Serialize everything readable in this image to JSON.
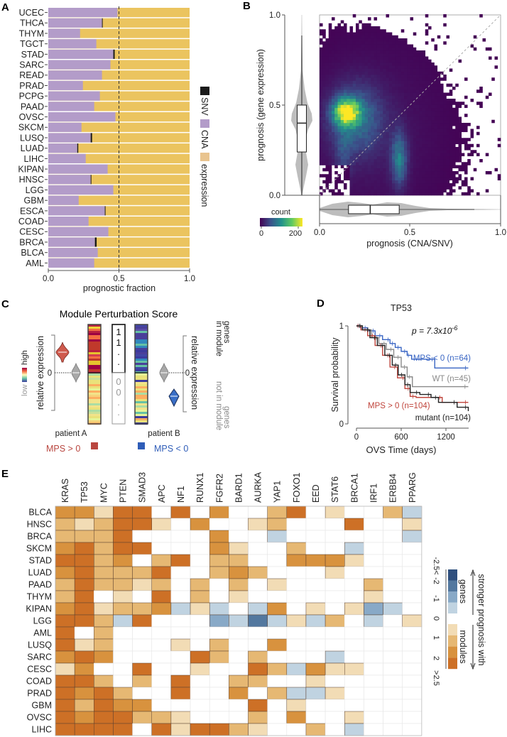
{
  "panels": {
    "A": "A",
    "B": "B",
    "C": "C",
    "D": "D",
    "E": "E"
  },
  "chart_data": [
    {
      "panel": "A",
      "type": "bar",
      "orientation": "horizontal-stacked",
      "categories": [
        "UCEC",
        "THCA",
        "THYM",
        "TGCT",
        "STAD",
        "SARC",
        "READ",
        "PRAD",
        "PCPG",
        "PAAD",
        "OVSC",
        "SKCM",
        "LUSQ",
        "LUAD",
        "LIHC",
        "KIPAN",
        "HNSC",
        "LGG",
        "GBM",
        "ESCA",
        "COAD",
        "CESC",
        "BRCA",
        "BLCA",
        "AML"
      ],
      "series": [
        {
          "name": "CNA",
          "color": "#b39cc9",
          "values": [
            0.49,
            0.38,
            0.225,
            0.34,
            0.46,
            0.44,
            0.38,
            0.245,
            0.365,
            0.325,
            0.475,
            0.235,
            0.3,
            0.205,
            0.265,
            0.42,
            0.3,
            0.46,
            0.215,
            0.4,
            0.285,
            0.425,
            0.33,
            0.35,
            0.325
          ]
        },
        {
          "name": "SNV",
          "color": "#1a1a1a",
          "values": [
            0,
            0.003,
            0,
            0,
            0.01,
            0,
            0,
            0,
            0,
            0,
            0,
            0,
            0.01,
            0.007,
            0,
            0,
            0.003,
            0,
            0,
            0.003,
            0,
            0,
            0.012,
            0,
            0
          ]
        },
        {
          "name": "expression",
          "color": "#ebc45f",
          "values": "remainder to 1.0"
        }
      ],
      "legend_colors": {
        "SNV": "#1a1a1a",
        "CNA": "#b39cc9",
        "expression": "#e9c48f"
      },
      "xlabel": "prognostic fraction",
      "xlim": [
        0,
        1
      ],
      "xticks": [
        "0.0",
        "0.5",
        "1.0"
      ],
      "reference_line": 0.5,
      "legend": [
        "SNV",
        "CNA",
        "expression"
      ],
      "legend_position": "right"
    },
    {
      "panel": "B",
      "type": "heatmap",
      "subtype": "2d-histogram with marginal violins",
      "xlabel": "prognosis (CNA/SNV)",
      "ylabel": "prognosis (gene expression)",
      "xlim": [
        0,
        1
      ],
      "ylim": [
        0,
        1
      ],
      "xticks": [
        "0.0",
        "0.5",
        "1.0"
      ],
      "yticks": [
        "0.0",
        "0.5",
        "1.0"
      ],
      "diagonal_reference": true,
      "density_peaks": [
        {
          "x": 0.16,
          "y": 0.45
        },
        {
          "x": 0.45,
          "y": 0.2
        }
      ],
      "colorbar": {
        "label": "count",
        "min": 0,
        "max": 200,
        "ticks": [
          "0",
          "200"
        ],
        "colormap": "viridis"
      },
      "y_marginal_box": {
        "q1": 0.24,
        "median": 0.4,
        "q3": 0.5
      },
      "x_marginal_box": {
        "q1": 0.16,
        "median": 0.28,
        "q3": 0.44
      }
    },
    {
      "panel": "D",
      "type": "line",
      "subtype": "kaplan-meier",
      "title": "TP53",
      "xlabel": "OVS Time (days)",
      "ylabel": "Survival probability",
      "xlim": [
        0,
        1500
      ],
      "ylim": [
        0,
        1
      ],
      "xticks": [
        "0",
        "600",
        "1200"
      ],
      "yticks": [
        "0",
        "1"
      ],
      "annotation": {
        "p_prefix": "p = 7.3x10",
        "p_exp": "-6"
      },
      "series": [
        {
          "name": "MPS < 0 (n=64)",
          "color": "#3a66c4",
          "points": [
            [
              0,
              1
            ],
            [
              60,
              0.98
            ],
            [
              150,
              0.95
            ],
            [
              250,
              0.9
            ],
            [
              350,
              0.86
            ],
            [
              450,
              0.82
            ],
            [
              520,
              0.78
            ],
            [
              600,
              0.74
            ],
            [
              680,
              0.7
            ],
            [
              740,
              0.66
            ],
            [
              1050,
              0.57
            ],
            [
              1500,
              0.57
            ]
          ]
        },
        {
          "name": "WT (n=45)",
          "color": "#8a8a8a",
          "points": [
            [
              0,
              1
            ],
            [
              80,
              0.96
            ],
            [
              200,
              0.88
            ],
            [
              300,
              0.82
            ],
            [
              400,
              0.76
            ],
            [
              500,
              0.68
            ],
            [
              600,
              0.58
            ],
            [
              680,
              0.48
            ],
            [
              750,
              0.38
            ],
            [
              1500,
              0.38
            ]
          ]
        },
        {
          "name": "MPS > 0 (n=104)",
          "color": "#c0453c",
          "points": [
            [
              0,
              1
            ],
            [
              60,
              0.96
            ],
            [
              150,
              0.9
            ],
            [
              250,
              0.8
            ],
            [
              350,
              0.7
            ],
            [
              450,
              0.58
            ],
            [
              550,
              0.47
            ],
            [
              650,
              0.36
            ],
            [
              720,
              0.28
            ],
            [
              800,
              0.27
            ],
            [
              1150,
              0.22
            ],
            [
              1500,
              0.22
            ]
          ]
        },
        {
          "name": "mutant (n=104)",
          "color": "#222222",
          "points": [
            [
              0,
              1
            ],
            [
              80,
              0.96
            ],
            [
              180,
              0.88
            ],
            [
              280,
              0.8
            ],
            [
              380,
              0.7
            ],
            [
              480,
              0.6
            ],
            [
              560,
              0.5
            ],
            [
              650,
              0.4
            ],
            [
              720,
              0.32
            ],
            [
              850,
              0.3
            ],
            [
              1000,
              0.27
            ],
            [
              1100,
              0.22
            ],
            [
              1350,
              0.17
            ],
            [
              1500,
              0.13
            ]
          ]
        }
      ]
    },
    {
      "panel": "E",
      "type": "heatmap",
      "columns": [
        "KRAS",
        "TP53",
        "MYC",
        "PTEN",
        "SMAD3",
        "APC",
        "NF1",
        "RUNX1",
        "FGFR2",
        "BARD1",
        "AURKA",
        "YAP1",
        "FOXO1",
        "EED",
        "STAT6",
        "BRCA1",
        "IRF1",
        "ERBB4",
        "PPARG"
      ],
      "rows": [
        "BLCA",
        "HNSC",
        "BRCA",
        "SKCM",
        "STAD",
        "LUAD",
        "PAAD",
        "THYM",
        "KIPAN",
        "LGG",
        "AML",
        "LUSQ",
        "SARC",
        "CESC",
        "COAD",
        "PRAD",
        "GBM",
        "OVSC",
        "LIHC"
      ],
      "value_note": "binned level: positive = stronger prognosis with modules (1..4 ≈ 0-1,1-2,2-2.5,>2.5), negative = stronger prognosis with genes",
      "values": [
        [
          3,
          3,
          1,
          4,
          4,
          0,
          4,
          0,
          3,
          0,
          0,
          2,
          4,
          0,
          1,
          0,
          0,
          2,
          -1
        ],
        [
          2,
          1,
          2,
          4,
          4,
          1,
          0,
          3,
          0,
          0,
          1,
          2,
          0,
          0,
          0,
          4,
          0,
          0,
          1
        ],
        [
          2,
          2,
          2,
          4,
          0,
          0,
          0,
          0,
          3,
          0,
          0,
          -1,
          0,
          0,
          0,
          0,
          0,
          0,
          -1
        ],
        [
          3,
          4,
          2,
          4,
          4,
          0,
          0,
          0,
          3,
          1,
          0,
          0,
          2,
          0,
          0,
          -1,
          0,
          0,
          0
        ],
        [
          4,
          4,
          2,
          3,
          0,
          2,
          4,
          0,
          2,
          2,
          0,
          0,
          3,
          3,
          3,
          1,
          0,
          0,
          0
        ],
        [
          3,
          4,
          2,
          2,
          2,
          4,
          0,
          0,
          2,
          3,
          2,
          0,
          0,
          0,
          1,
          0,
          0,
          0,
          0
        ],
        [
          2,
          4,
          2,
          2,
          1,
          2,
          0,
          2,
          0,
          2,
          0,
          1,
          0,
          0,
          0,
          0,
          2,
          0,
          0
        ],
        [
          2,
          4,
          0,
          1,
          0,
          4,
          0,
          2,
          0,
          1,
          0,
          0,
          0,
          0,
          0,
          0,
          1,
          0,
          0
        ],
        [
          3,
          4,
          1,
          2,
          2,
          3,
          -1,
          1,
          -1,
          0,
          -1,
          3,
          0,
          1,
          0,
          1,
          -2,
          -1,
          0
        ],
        [
          4,
          4,
          2,
          -1,
          4,
          0,
          0,
          0,
          -2,
          -1,
          -3,
          -1,
          1,
          -1,
          2,
          0,
          -1,
          0,
          1
        ],
        [
          4,
          0,
          2,
          0,
          0,
          0,
          0,
          0,
          0,
          0,
          0,
          0,
          0,
          0,
          0,
          0,
          0,
          0,
          0
        ],
        [
          4,
          1,
          2,
          0,
          0,
          0,
          1,
          0,
          2,
          0,
          0,
          3,
          0,
          0,
          0,
          0,
          0,
          0,
          0
        ],
        [
          3,
          4,
          3,
          0,
          0,
          0,
          0,
          4,
          2,
          0,
          2,
          0,
          0,
          0,
          -1,
          0,
          0,
          0,
          0
        ],
        [
          1,
          3,
          0,
          0,
          4,
          0,
          0,
          1,
          0,
          0,
          4,
          2,
          -1,
          3,
          1,
          1,
          0,
          0,
          0
        ],
        [
          4,
          4,
          2,
          0,
          2,
          0,
          4,
          0,
          0,
          2,
          2,
          0,
          0,
          1,
          0,
          0,
          0,
          0,
          0
        ],
        [
          4,
          3,
          4,
          2,
          0,
          0,
          4,
          0,
          0,
          3,
          0,
          2,
          -1,
          -1,
          1,
          0,
          0,
          0,
          0
        ],
        [
          4,
          2,
          4,
          3,
          3,
          0,
          0,
          0,
          0,
          0,
          4,
          0,
          1,
          0,
          0,
          0,
          0,
          0,
          0
        ],
        [
          4,
          3,
          4,
          4,
          2,
          2,
          1,
          0,
          0,
          0,
          2,
          0,
          3,
          0,
          0,
          1,
          0,
          0,
          0
        ],
        [
          4,
          4,
          4,
          4,
          0,
          4,
          1,
          4,
          4,
          2,
          1,
          0,
          0,
          2,
          0,
          -1,
          0,
          0,
          0
        ]
      ],
      "colors": {
        "4": "#cd7026",
        "3": "#d8923e",
        "2": "#e6b873",
        "1": "#f2dcb5",
        "0": "#ffffff",
        "-1": "#c0d3e1",
        "-2": "#88a9c7",
        "-3": "#53789f",
        "-4": "#2f4f7e"
      },
      "legend": {
        "ticks": [
          "-2.5<",
          "-2",
          "-1",
          "0",
          "1",
          "2",
          ">2.5"
        ],
        "genes_label": "genes",
        "modules_label": "modules",
        "title": "stronger prognosis with"
      }
    }
  ],
  "schematic": {
    "title": "Module Perturbation Score",
    "axis_label": "relative expression",
    "zero": "0",
    "scale_high": "high",
    "scale_low": "low",
    "in_module_digits": [
      "1",
      "1",
      ".",
      "."
    ],
    "out_module_digits": [
      "0",
      "0",
      ".",
      "."
    ],
    "genes_in_module": [
      "genes",
      "in module"
    ],
    "genes_not_in_module": [
      "genes",
      "not in module"
    ],
    "patient_a": "patient A",
    "patient_b": "patient B",
    "mps_pos": "MPS > 0",
    "mps_neg": "MPS < 0",
    "pos_color": "#b9463f",
    "neg_color": "#2f5db8"
  }
}
